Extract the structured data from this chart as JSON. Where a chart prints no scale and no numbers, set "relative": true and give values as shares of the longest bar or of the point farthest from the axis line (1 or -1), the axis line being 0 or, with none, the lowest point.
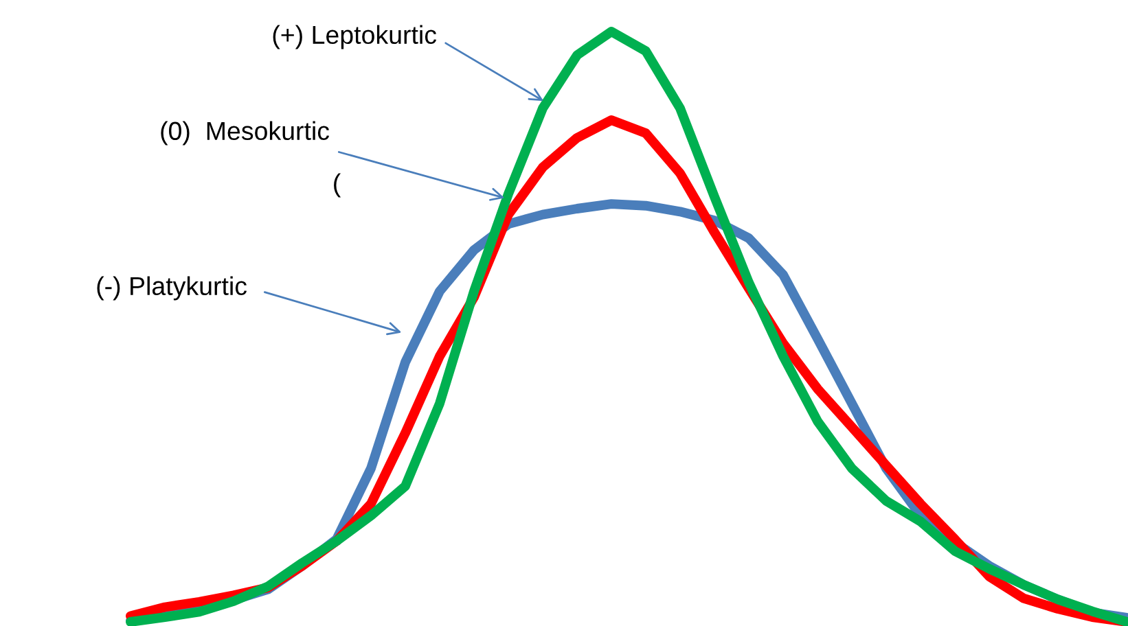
{
  "chart_data": {
    "type": "line",
    "relative": true,
    "legend": false,
    "marker": "none",
    "line_style": "solid",
    "categories": [
      null,
      null,
      null,
      null,
      null,
      null,
      null,
      null,
      null,
      null,
      null,
      null,
      null,
      null,
      null,
      null,
      null,
      null,
      null,
      null,
      null,
      null,
      null,
      null,
      null,
      null,
      null,
      null,
      null,
      null
    ],
    "series": [
      {
        "color": "#4a7ebb",
        "values": [
          0.002,
          0.012,
          0.021,
          0.037,
          0.055,
          0.095,
          0.14,
          0.26,
          0.44,
          0.56,
          0.63,
          0.674,
          0.69,
          0.7,
          0.708,
          0.705,
          0.695,
          0.68,
          0.65,
          0.588,
          0.48,
          0.37,
          0.26,
          0.18,
          0.135,
          0.095,
          0.063,
          0.038,
          0.016,
          0.007
        ]
      },
      {
        "color": "#ff0000",
        "values": [
          0.01,
          0.025,
          0.034,
          0.045,
          0.058,
          0.095,
          0.137,
          0.2,
          0.32,
          0.45,
          0.55,
          0.69,
          0.77,
          0.82,
          0.85,
          0.828,
          0.76,
          0.66,
          0.565,
          0.472,
          0.395,
          0.33,
          0.265,
          0.2,
          0.14,
          0.077,
          0.04,
          0.022,
          0.008,
          0
        ]
      },
      {
        "color": "#00b050",
        "values": [
          0,
          0.008,
          0.017,
          0.035,
          0.06,
          0.1,
          0.137,
          0.18,
          0.23,
          0.37,
          0.56,
          0.725,
          0.87,
          0.96,
          1,
          0.967,
          0.87,
          0.72,
          0.575,
          0.45,
          0.34,
          0.26,
          0.205,
          0.17,
          0.12,
          0.09,
          0.063,
          0.038,
          0.018,
          0
        ]
      }
    ],
    "annotations": [
      "(+) Leptokurtic",
      "(0)  Mesokurtic",
      "(",
      "(-) Platykurtic"
    ]
  }
}
